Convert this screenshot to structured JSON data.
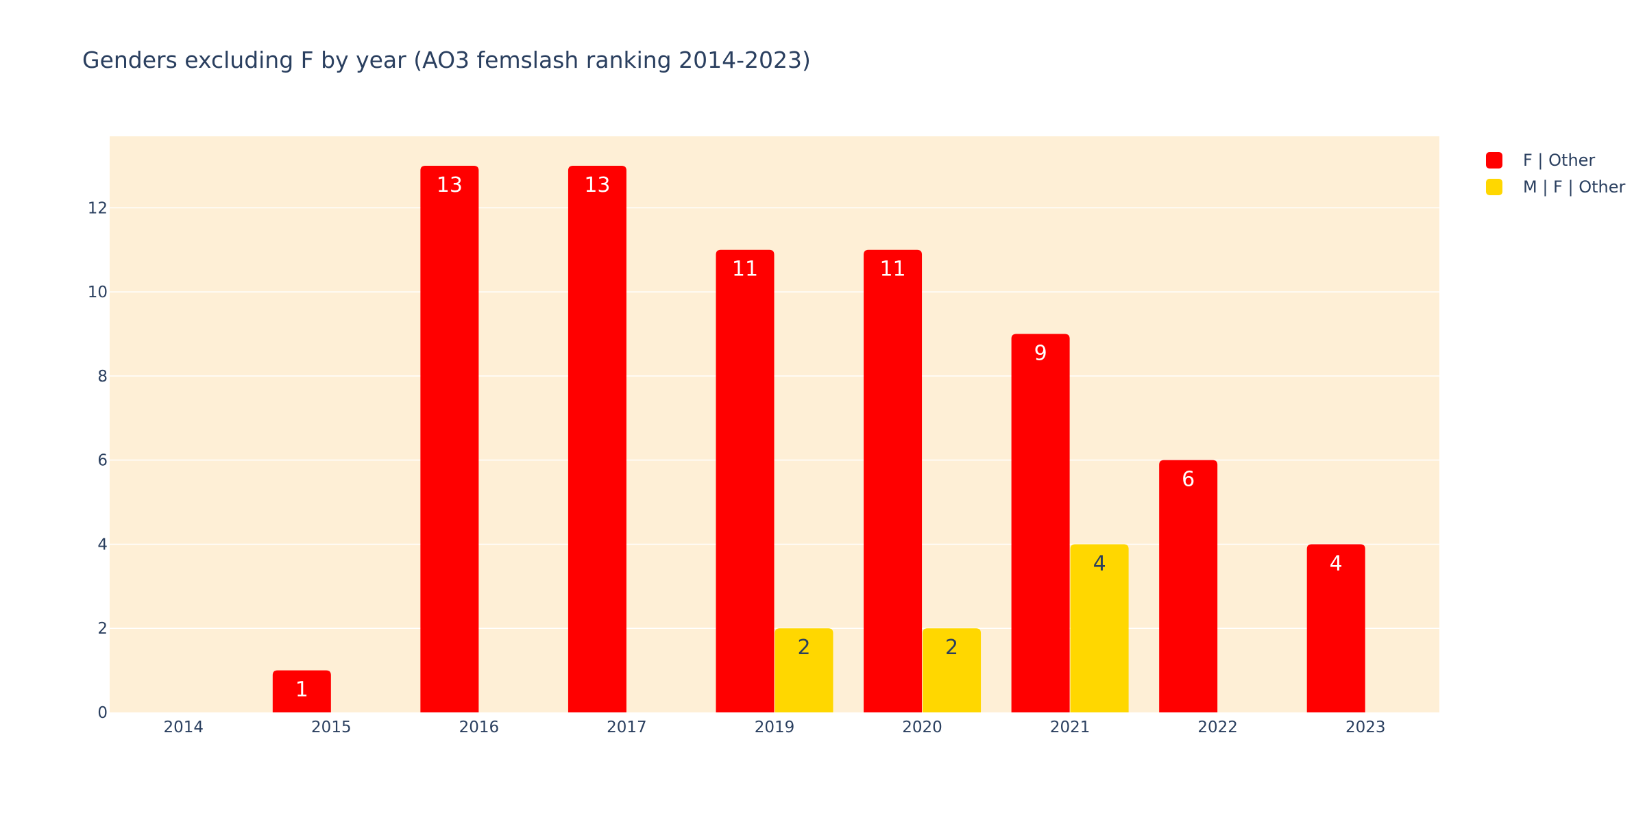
{
  "chart_data": {
    "type": "bar",
    "title": "Genders excluding F by year (AO3 femslash ranking 2014-2023)",
    "xlabel": "",
    "ylabel": "",
    "categories": [
      "2014",
      "2015",
      "2016",
      "2017",
      "2019",
      "2020",
      "2021",
      "2022",
      "2023"
    ],
    "series": [
      {
        "name": "F | Other",
        "color": "#ff0000",
        "label_color": "#ffffff",
        "values": [
          0,
          1,
          13,
          13,
          11,
          11,
          9,
          6,
          4
        ]
      },
      {
        "name": "M | F | Other",
        "color": "#ffd700",
        "label_color": "#2a3f5f",
        "values": [
          0,
          0,
          0,
          0,
          2,
          2,
          4,
          0,
          0
        ]
      }
    ],
    "ylim": [
      0,
      13.7
    ],
    "yticks": [
      0,
      2,
      4,
      6,
      8,
      10,
      12
    ],
    "grid": true,
    "plot_background": "#feefd6",
    "legend_position": "right-top"
  }
}
